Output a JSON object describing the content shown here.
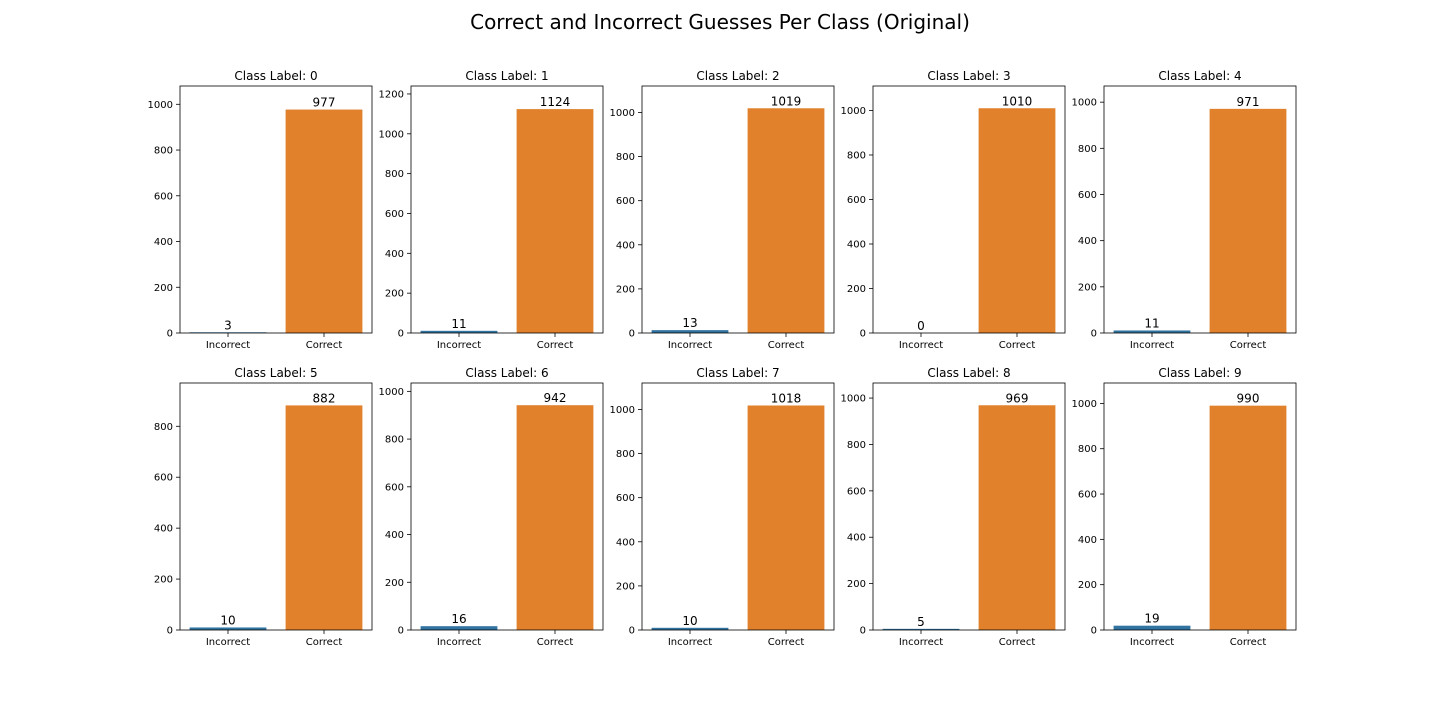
{
  "title": "Correct and Incorrect Guesses Per Class (Original)",
  "colors": {
    "incorrect": "#3274a1",
    "correct": "#e1812c",
    "axes": "#000000"
  },
  "chart_data": [
    {
      "type": "bar",
      "title": "Class Label: 0",
      "categories": [
        "Incorrect",
        "Correct"
      ],
      "values": [
        3,
        977
      ],
      "yticks": [
        0,
        200,
        400,
        600,
        800,
        1000
      ],
      "ylim": [
        0,
        1080
      ]
    },
    {
      "type": "bar",
      "title": "Class Label: 1",
      "categories": [
        "Incorrect",
        "Correct"
      ],
      "values": [
        11,
        1124
      ],
      "yticks": [
        0,
        200,
        400,
        600,
        800,
        1000,
        1200
      ],
      "ylim": [
        0,
        1240
      ]
    },
    {
      "type": "bar",
      "title": "Class Label: 2",
      "categories": [
        "Incorrect",
        "Correct"
      ],
      "values": [
        13,
        1019
      ],
      "yticks": [
        0,
        200,
        400,
        600,
        800,
        1000
      ],
      "ylim": [
        0,
        1120
      ]
    },
    {
      "type": "bar",
      "title": "Class Label: 3",
      "categories": [
        "Incorrect",
        "Correct"
      ],
      "values": [
        0,
        1010
      ],
      "yticks": [
        0,
        200,
        400,
        600,
        800,
        1000
      ],
      "ylim": [
        0,
        1110
      ]
    },
    {
      "type": "bar",
      "title": "Class Label: 4",
      "categories": [
        "Incorrect",
        "Correct"
      ],
      "values": [
        11,
        971
      ],
      "yticks": [
        0,
        200,
        400,
        600,
        800,
        1000
      ],
      "ylim": [
        0,
        1070
      ]
    },
    {
      "type": "bar",
      "title": "Class Label: 5",
      "categories": [
        "Incorrect",
        "Correct"
      ],
      "values": [
        10,
        882
      ],
      "yticks": [
        0,
        200,
        400,
        600,
        800
      ],
      "ylim": [
        0,
        970
      ]
    },
    {
      "type": "bar",
      "title": "Class Label: 6",
      "categories": [
        "Incorrect",
        "Correct"
      ],
      "values": [
        16,
        942
      ],
      "yticks": [
        0,
        200,
        400,
        600,
        800,
        1000
      ],
      "ylim": [
        0,
        1035
      ]
    },
    {
      "type": "bar",
      "title": "Class Label: 7",
      "categories": [
        "Incorrect",
        "Correct"
      ],
      "values": [
        10,
        1018
      ],
      "yticks": [
        0,
        200,
        400,
        600,
        800,
        1000
      ],
      "ylim": [
        0,
        1120
      ]
    },
    {
      "type": "bar",
      "title": "Class Label: 8",
      "categories": [
        "Incorrect",
        "Correct"
      ],
      "values": [
        5,
        969
      ],
      "yticks": [
        0,
        200,
        400,
        600,
        800,
        1000
      ],
      "ylim": [
        0,
        1065
      ]
    },
    {
      "type": "bar",
      "title": "Class Label: 9",
      "categories": [
        "Incorrect",
        "Correct"
      ],
      "values": [
        19,
        990
      ],
      "yticks": [
        0,
        200,
        400,
        600,
        800,
        1000
      ],
      "ylim": [
        0,
        1090
      ]
    }
  ]
}
